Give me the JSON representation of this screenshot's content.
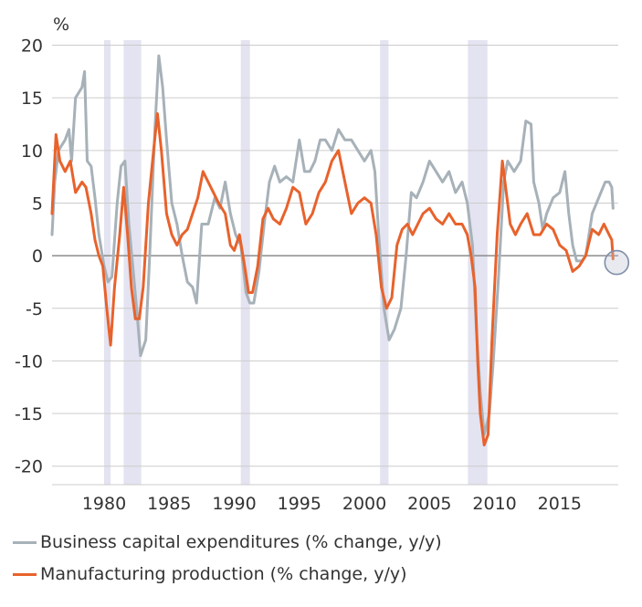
{
  "chart_data": {
    "type": "line",
    "ylabel": "%",
    "ylim": [
      -21.5,
      21
    ],
    "xlim": [
      1976,
      2019.5
    ],
    "yticks": [
      20,
      15,
      10,
      5,
      0,
      -5,
      -10,
      -15,
      -20
    ],
    "xticks": [
      1980,
      1985,
      1990,
      1995,
      2000,
      2005,
      2010,
      2015
    ],
    "grid": "horizontal",
    "legend_position": "bottom-left",
    "recession_bands": [
      [
        1980.0,
        1980.5
      ],
      [
        1981.5,
        1982.85
      ],
      [
        1990.5,
        1991.2
      ],
      [
        2001.2,
        2001.85
      ],
      [
        2007.95,
        2009.45
      ]
    ],
    "highlight_point": {
      "x": 2019.1,
      "y": -0.3
    },
    "colors": {
      "capex": "#a7b1b8",
      "manufacturing": "#e8622c",
      "recession": "#e3e3f1",
      "grid": "#cccccc",
      "zero": "#8c8c8c",
      "highlight": "#7f8da8"
    },
    "series": [
      {
        "name": "Business capital expenditures (% change, y/y)",
        "points": [
          [
            1976.0,
            2
          ],
          [
            1976.2,
            7
          ],
          [
            1976.5,
            10
          ],
          [
            1977.0,
            11
          ],
          [
            1977.3,
            12
          ],
          [
            1977.5,
            9
          ],
          [
            1977.8,
            15
          ],
          [
            1978.3,
            16
          ],
          [
            1978.5,
            17.5
          ],
          [
            1978.7,
            9
          ],
          [
            1979.0,
            8.5
          ],
          [
            1979.3,
            5.5
          ],
          [
            1979.6,
            2
          ],
          [
            1980.0,
            -1
          ],
          [
            1980.3,
            -2.5
          ],
          [
            1980.6,
            -2
          ],
          [
            1981.0,
            5
          ],
          [
            1981.3,
            8.5
          ],
          [
            1981.6,
            9
          ],
          [
            1981.9,
            3
          ],
          [
            1982.2,
            -1
          ],
          [
            1982.5,
            -5
          ],
          [
            1982.8,
            -9.5
          ],
          [
            1983.2,
            -8
          ],
          [
            1983.5,
            0
          ],
          [
            1983.9,
            12
          ],
          [
            1984.2,
            19
          ],
          [
            1984.5,
            16
          ],
          [
            1984.8,
            11
          ],
          [
            1985.2,
            5
          ],
          [
            1985.6,
            3
          ],
          [
            1986.0,
            0
          ],
          [
            1986.4,
            -2.5
          ],
          [
            1986.8,
            -3
          ],
          [
            1987.1,
            -4.5
          ],
          [
            1987.5,
            3
          ],
          [
            1988.0,
            3
          ],
          [
            1988.5,
            5.5
          ],
          [
            1988.9,
            4.5
          ],
          [
            1989.3,
            7
          ],
          [
            1989.7,
            4
          ],
          [
            1990.1,
            2
          ],
          [
            1990.5,
            1
          ],
          [
            1990.9,
            -3.5
          ],
          [
            1991.2,
            -4.5
          ],
          [
            1991.5,
            -4.5
          ],
          [
            1991.9,
            -1.5
          ],
          [
            1992.3,
            3
          ],
          [
            1992.7,
            7
          ],
          [
            1993.1,
            8.5
          ],
          [
            1993.5,
            7
          ],
          [
            1994.0,
            7.5
          ],
          [
            1994.5,
            7
          ],
          [
            1995.0,
            11
          ],
          [
            1995.4,
            8
          ],
          [
            1995.8,
            8
          ],
          [
            1996.2,
            9
          ],
          [
            1996.6,
            11
          ],
          [
            1997.0,
            11
          ],
          [
            1997.5,
            10
          ],
          [
            1998.0,
            12
          ],
          [
            1998.5,
            11
          ],
          [
            1999.0,
            11
          ],
          [
            1999.5,
            10
          ],
          [
            2000.0,
            9
          ],
          [
            2000.5,
            10
          ],
          [
            2000.8,
            8
          ],
          [
            2001.1,
            2
          ],
          [
            2001.5,
            -5
          ],
          [
            2001.9,
            -8
          ],
          [
            2002.3,
            -7
          ],
          [
            2002.8,
            -5
          ],
          [
            2003.2,
            0
          ],
          [
            2003.6,
            6
          ],
          [
            2004.0,
            5.5
          ],
          [
            2004.5,
            7
          ],
          [
            2005.0,
            9
          ],
          [
            2005.5,
            8
          ],
          [
            2006.0,
            7
          ],
          [
            2006.5,
            8
          ],
          [
            2007.0,
            6
          ],
          [
            2007.5,
            7
          ],
          [
            2007.9,
            5
          ],
          [
            2008.3,
            1
          ],
          [
            2008.6,
            -7
          ],
          [
            2008.9,
            -13
          ],
          [
            2009.2,
            -17
          ],
          [
            2009.6,
            -15
          ],
          [
            2009.9,
            -10
          ],
          [
            2010.3,
            -2
          ],
          [
            2010.7,
            7
          ],
          [
            2011.0,
            9
          ],
          [
            2011.5,
            8
          ],
          [
            2012.0,
            9
          ],
          [
            2012.4,
            12.8
          ],
          [
            2012.8,
            12.5
          ],
          [
            2013.0,
            7
          ],
          [
            2013.4,
            5
          ],
          [
            2013.7,
            2.5
          ],
          [
            2014.0,
            4
          ],
          [
            2014.5,
            5.5
          ],
          [
            2015.0,
            6
          ],
          [
            2015.4,
            8
          ],
          [
            2015.7,
            4
          ],
          [
            2016.0,
            1
          ],
          [
            2016.3,
            -0.5
          ],
          [
            2016.7,
            -0.5
          ],
          [
            2017.0,
            0
          ],
          [
            2017.5,
            4
          ],
          [
            2018.0,
            5.5
          ],
          [
            2018.5,
            7
          ],
          [
            2018.8,
            7
          ],
          [
            2019.0,
            6.5
          ],
          [
            2019.1,
            4.5
          ]
        ]
      },
      {
        "name": "Manufacturing production (% change, y/y)",
        "points": [
          [
            1976.0,
            4
          ],
          [
            1976.3,
            11.5
          ],
          [
            1976.6,
            9
          ],
          [
            1977.0,
            8
          ],
          [
            1977.4,
            9
          ],
          [
            1977.8,
            6
          ],
          [
            1978.3,
            7
          ],
          [
            1978.6,
            6.5
          ],
          [
            1979.0,
            4
          ],
          [
            1979.3,
            1.5
          ],
          [
            1979.6,
            0
          ],
          [
            1979.9,
            -1
          ],
          [
            1980.2,
            -5
          ],
          [
            1980.5,
            -8.5
          ],
          [
            1980.8,
            -3
          ],
          [
            1981.2,
            2
          ],
          [
            1981.5,
            6.5
          ],
          [
            1981.8,
            2
          ],
          [
            1982.1,
            -3
          ],
          [
            1982.4,
            -6
          ],
          [
            1982.7,
            -6
          ],
          [
            1983.0,
            -3
          ],
          [
            1983.4,
            5
          ],
          [
            1983.8,
            10
          ],
          [
            1984.1,
            13.5
          ],
          [
            1984.4,
            10
          ],
          [
            1984.8,
            4
          ],
          [
            1985.2,
            2
          ],
          [
            1985.6,
            1
          ],
          [
            1986.0,
            2
          ],
          [
            1986.4,
            2.5
          ],
          [
            1986.8,
            4
          ],
          [
            1987.2,
            5.5
          ],
          [
            1987.6,
            8
          ],
          [
            1988.0,
            7
          ],
          [
            1988.4,
            6
          ],
          [
            1988.8,
            5
          ],
          [
            1989.3,
            4
          ],
          [
            1989.7,
            1
          ],
          [
            1990.0,
            0.5
          ],
          [
            1990.4,
            2
          ],
          [
            1990.8,
            -1
          ],
          [
            1991.1,
            -3.5
          ],
          [
            1991.4,
            -3.5
          ],
          [
            1991.8,
            -1
          ],
          [
            1992.2,
            3.5
          ],
          [
            1992.6,
            4.5
          ],
          [
            1993.0,
            3.5
          ],
          [
            1993.5,
            3
          ],
          [
            1994.0,
            4.5
          ],
          [
            1994.5,
            6.5
          ],
          [
            1995.0,
            6
          ],
          [
            1995.5,
            3
          ],
          [
            1996.0,
            4
          ],
          [
            1996.5,
            6
          ],
          [
            1997.0,
            7
          ],
          [
            1997.5,
            9
          ],
          [
            1998.0,
            10
          ],
          [
            1998.5,
            7
          ],
          [
            1999.0,
            4
          ],
          [
            1999.5,
            5
          ],
          [
            2000.0,
            5.5
          ],
          [
            2000.5,
            5
          ],
          [
            2000.9,
            2
          ],
          [
            2001.3,
            -3
          ],
          [
            2001.7,
            -5
          ],
          [
            2002.1,
            -4
          ],
          [
            2002.5,
            1
          ],
          [
            2002.9,
            2.5
          ],
          [
            2003.3,
            3
          ],
          [
            2003.7,
            2
          ],
          [
            2004.1,
            3
          ],
          [
            2004.5,
            4
          ],
          [
            2005.0,
            4.5
          ],
          [
            2005.5,
            3.5
          ],
          [
            2006.0,
            3
          ],
          [
            2006.5,
            4
          ],
          [
            2007.0,
            3
          ],
          [
            2007.5,
            3
          ],
          [
            2007.9,
            2
          ],
          [
            2008.2,
            0
          ],
          [
            2008.5,
            -3
          ],
          [
            2008.7,
            -10
          ],
          [
            2008.9,
            -15
          ],
          [
            2009.2,
            -18
          ],
          [
            2009.5,
            -17
          ],
          [
            2009.8,
            -8
          ],
          [
            2010.2,
            2
          ],
          [
            2010.6,
            9
          ],
          [
            2010.9,
            6
          ],
          [
            2011.2,
            3
          ],
          [
            2011.6,
            2
          ],
          [
            2012.0,
            3
          ],
          [
            2012.5,
            4
          ],
          [
            2013.0,
            2
          ],
          [
            2013.5,
            2
          ],
          [
            2014.0,
            3
          ],
          [
            2014.5,
            2.5
          ],
          [
            2015.0,
            1
          ],
          [
            2015.5,
            0.5
          ],
          [
            2016.0,
            -1.5
          ],
          [
            2016.5,
            -1
          ],
          [
            2017.0,
            0
          ],
          [
            2017.5,
            2.5
          ],
          [
            2018.0,
            2
          ],
          [
            2018.4,
            3
          ],
          [
            2018.8,
            2
          ],
          [
            2019.0,
            1.5
          ],
          [
            2019.1,
            -0.3
          ]
        ]
      }
    ]
  }
}
